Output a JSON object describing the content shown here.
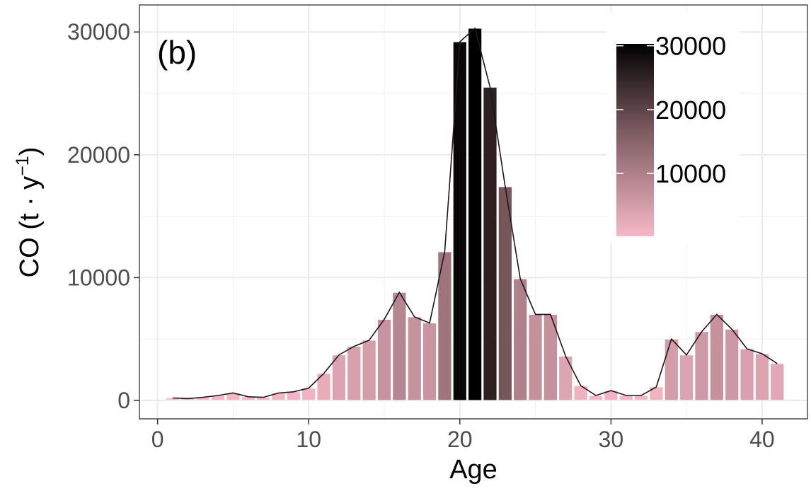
{
  "chart_data": {
    "type": "bar",
    "panel_tag": "(b)",
    "xlabel": "Age",
    "ylabel_main": "CO (t · y",
    "ylabel_sup": "−1",
    "ylabel_end": ")",
    "xlim": [
      -1.2,
      43
    ],
    "ylim": [
      -1500,
      32200
    ],
    "x_ticks": [
      0,
      10,
      20,
      30,
      40
    ],
    "y_ticks": [
      0,
      10000,
      20000,
      30000
    ],
    "x_tick_labels": [
      "0",
      "10",
      "20",
      "30",
      "40"
    ],
    "y_tick_labels": [
      "0",
      "10000",
      "20000",
      "30000"
    ],
    "x": [
      1,
      2,
      3,
      4,
      5,
      6,
      7,
      8,
      9,
      10,
      11,
      12,
      13,
      14,
      15,
      16,
      17,
      18,
      19,
      20,
      21,
      22,
      23,
      24,
      25,
      26,
      27,
      28,
      29,
      30,
      31,
      32,
      33,
      34,
      35,
      36,
      37,
      38,
      39,
      40,
      41
    ],
    "values": [
      200,
      150,
      250,
      400,
      600,
      300,
      250,
      600,
      700,
      1000,
      2200,
      3700,
      4400,
      4900,
      6600,
      8800,
      6800,
      6300,
      12100,
      29200,
      30300,
      25500,
      17400,
      9900,
      7000,
      7000,
      3600,
      1200,
      400,
      800,
      400,
      400,
      1100,
      5000,
      3700,
      5600,
      7000,
      5800,
      4200,
      3800,
      3000
    ],
    "grid": true,
    "legend": {
      "position": "top-right",
      "type": "colorbar",
      "tick_values": [
        10000,
        20000,
        30000
      ],
      "tick_labels": [
        "10000",
        "20000",
        "30000"
      ],
      "color_low": "#f7b8c8",
      "color_mid": "#7b5a60",
      "color_high": "#000000"
    },
    "line": {
      "color": "#1a1a1a"
    }
  }
}
